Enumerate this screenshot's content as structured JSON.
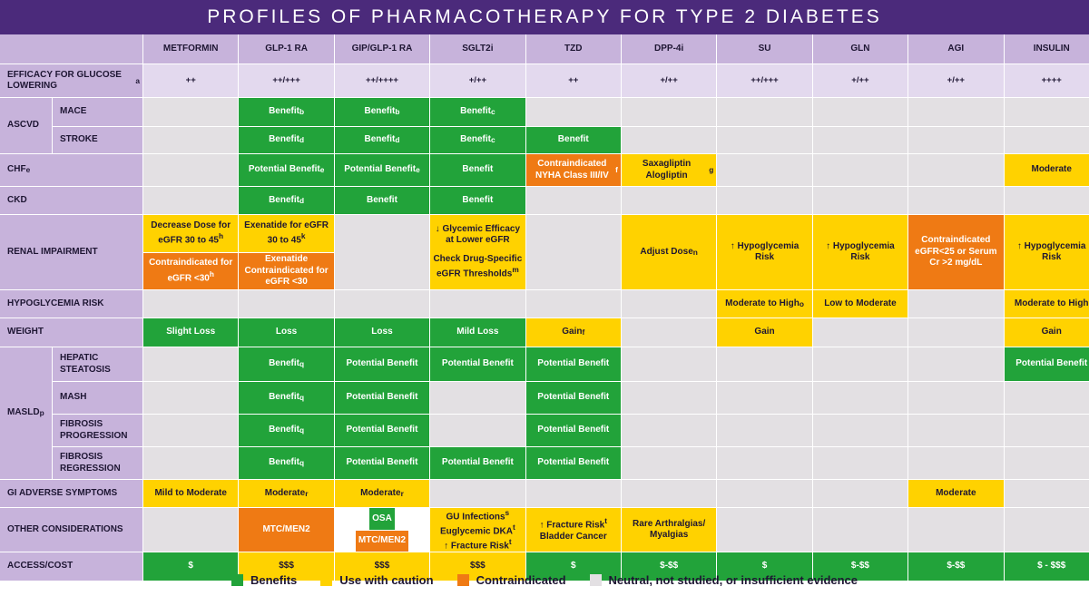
{
  "title": "PROFILES OF PHARMACOTHERAPY FOR TYPE 2 DIABETES",
  "columns": [
    "METFORMIN",
    "GLP-1 RA",
    "GIP/GLP-1 RA",
    "SGLT2i",
    "TZD",
    "DPP-4i",
    "SU",
    "GLN",
    "AGI",
    "INSULIN"
  ],
  "colors": {
    "benefit": "#22a33a",
    "caution": "#ffd200",
    "contraindicated": "#ef7a14",
    "neutral": "#e3e0e3",
    "header": "#4b2a7b",
    "label": "#c7b3db"
  },
  "rows": {
    "efficacy": {
      "label": "EFFICACY FOR GLUCOSE LOWERING",
      "sup": "a",
      "values": [
        "++",
        "++/+++",
        "++/++++",
        "+/++",
        "++",
        "+/++",
        "++/+++",
        "+/++",
        "+/++",
        "++++"
      ]
    },
    "ascvd": {
      "label": "ASCVD",
      "mace": "MACE",
      "stroke": "STROKE"
    },
    "mace": {
      "glp1": "Benefit",
      "glp1_sup": "b",
      "gip": "Benefit",
      "gip_sup": "b",
      "sglt2": "Benefit",
      "sglt2_sup": "c"
    },
    "stroke": {
      "glp1": "Benefit",
      "glp1_sup": "d",
      "gip": "Benefit",
      "gip_sup": "d",
      "sglt2": "Benefit",
      "sglt2_sup": "c",
      "tzd": "Benefit"
    },
    "chf": {
      "label": "CHF",
      "label_sup": "e",
      "glp1": "Potential Benefit",
      "glp1_sup": "e",
      "gip": "Potential Benefit",
      "gip_sup": "e",
      "sglt2": "Benefit",
      "tzd": "Contraindicated NYHA Class III/IV",
      "tzd_sup": "f",
      "dpp4": "Saxagliptin Alogliptin",
      "dpp4_sup": "g",
      "insulin": "Moderate"
    },
    "ckd": {
      "label": "CKD",
      "glp1": "Benefit",
      "glp1_sup": "d",
      "gip": "Benefit",
      "sglt2": "Benefit"
    },
    "renal": {
      "label": "RENAL IMPAIRMENT",
      "met_top": "Decrease Dose for eGFR 30 to 45",
      "met_top_sup": "h",
      "met_bottom": "Contraindicated for eGFR <30",
      "met_bottom_sup": "h",
      "glp1_top": "Exenatide for eGFR 30 to 45",
      "glp1_top_sup": "k",
      "glp1_bottom": "Exenatide Contraindicated for eGFR <30",
      "sglt2_a": "↓ Glycemic Efficacy at Lower eGFR",
      "sglt2_b": "Check Drug-Specific eGFR Thresholds",
      "sglt2_b_sup": "m",
      "dpp4": "Adjust Dose",
      "dpp4_sup": "n",
      "su": "↑ Hypoglycemia Risk",
      "gln": "↑ Hypoglycemia Risk",
      "agi": "Contraindicated eGFR<25 or Serum Cr >2 mg/dL",
      "insulin": "↑ Hypoglycemia Risk"
    },
    "hypo": {
      "label": "HYPOGLYCEMIA RISK",
      "su": "Moderate to High",
      "su_sup": "o",
      "gln": "Low to Moderate",
      "insulin": "Moderate to High"
    },
    "weight": {
      "label": "WEIGHT",
      "met": "Slight Loss",
      "glp1": "Loss",
      "gip": "Loss",
      "sglt2": "Mild Loss",
      "tzd": "Gain",
      "tzd_sup": "f",
      "su": "Gain",
      "insulin": "Gain"
    },
    "masld": {
      "label": "MASLD",
      "label_sup": "p",
      "hepatic": {
        "label": "HEPATIC STEATOSIS",
        "glp1": "Benefit",
        "glp1_sup": "q",
        "gip": "Potential Benefit",
        "sglt2": "Potential Benefit",
        "tzd": "Potential Benefit",
        "insulin": "Potential Benefit"
      },
      "mash": {
        "label": "MASH",
        "glp1": "Benefit",
        "glp1_sup": "q",
        "gip": "Potential Benefit",
        "tzd": "Potential Benefit"
      },
      "fprog": {
        "label": "FIBROSIS PROGRESSION",
        "glp1": "Benefit",
        "glp1_sup": "q",
        "gip": "Potential Benefit",
        "tzd": "Potential Benefit"
      },
      "freg": {
        "label": "FIBROSIS REGRESSION",
        "glp1": "Benefit",
        "glp1_sup": "q",
        "gip": "Potential Benefit",
        "sglt2": "Potential Benefit",
        "tzd": "Potential Benefit"
      }
    },
    "gi": {
      "label": "GI ADVERSE SYMPTOMS",
      "met": "Mild to Moderate",
      "glp1": "Moderate",
      "glp1_sup": "r",
      "gip": "Moderate",
      "gip_sup": "r",
      "agi": "Moderate"
    },
    "other": {
      "label": "OTHER CONSIDERATIONS",
      "glp1": "MTC/MEN2",
      "gip_top": "OSA",
      "gip_bottom": "MTC/MEN2",
      "sglt2_a": "GU Infections",
      "sglt2_a_sup": "s",
      "sglt2_b": "Euglycemic DKA",
      "sglt2_b_sup": "t",
      "sglt2_c": "↑ Fracture Risk",
      "sglt2_c_sup": "t",
      "tzd_a": "↑ Fracture Risk",
      "tzd_a_sup": "t",
      "tzd_b": "Bladder Cancer",
      "dpp4": "Rare Arthralgias/ Myalgias"
    },
    "access": {
      "label": "ACCESS/COST",
      "values": [
        "$",
        "$$$",
        "$$$",
        "$$$",
        "$",
        "$-$$",
        "$",
        "$-$$",
        "$-$$",
        "$ - $$$"
      ]
    }
  },
  "legend": [
    "Benefits",
    "Use with caution",
    "Contraindicated",
    "Neutral, not studied, or insufficient evidence"
  ]
}
